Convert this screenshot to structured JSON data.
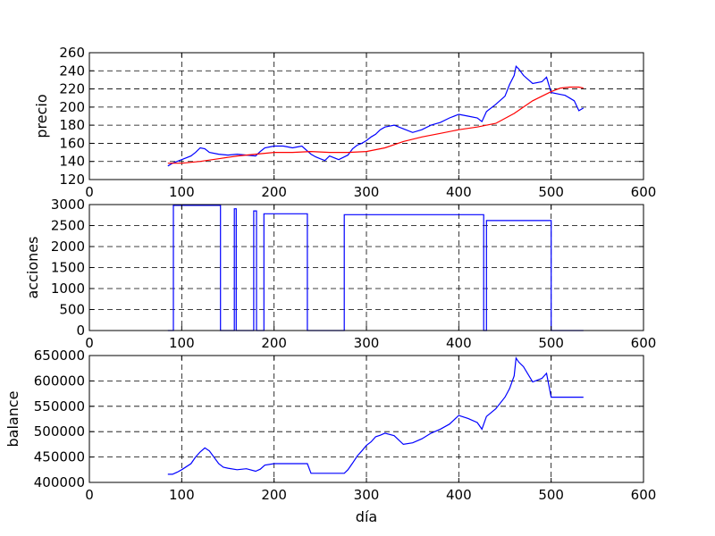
{
  "chart_data": [
    {
      "type": "line",
      "ylabel": "precio",
      "xlim": [
        0,
        600
      ],
      "ylim": [
        120,
        260
      ],
      "xticks": [
        "0",
        "100",
        "200",
        "300",
        "400",
        "500",
        "600"
      ],
      "yticks": [
        "120",
        "140",
        "160",
        "180",
        "200",
        "220",
        "240",
        "260"
      ],
      "grid": true,
      "series": [
        {
          "color": "#0000ff",
          "x": [
            85,
            90,
            100,
            110,
            115,
            120,
            125,
            130,
            140,
            150,
            160,
            170,
            180,
            185,
            190,
            200,
            210,
            220,
            230,
            240,
            245,
            250,
            255,
            260,
            270,
            280,
            285,
            290,
            295,
            300,
            305,
            310,
            315,
            320,
            330,
            340,
            350,
            360,
            370,
            380,
            390,
            400,
            410,
            420,
            425,
            430,
            440,
            450,
            455,
            460,
            462,
            465,
            470,
            480,
            490,
            495,
            500,
            510,
            515,
            520,
            525,
            530,
            535
          ],
          "y": [
            135,
            138,
            142,
            146,
            150,
            155,
            154,
            150,
            148,
            147,
            148,
            147,
            146,
            151,
            155,
            157,
            157,
            155,
            157,
            148,
            145,
            143,
            141,
            146,
            142,
            147,
            154,
            158,
            160,
            163,
            167,
            170,
            175,
            178,
            180,
            176,
            172,
            175,
            180,
            183,
            188,
            192,
            190,
            188,
            184,
            195,
            203,
            212,
            225,
            235,
            245,
            242,
            235,
            226,
            228,
            233,
            216,
            214,
            213,
            210,
            207,
            196,
            199
          ]
        },
        {
          "color": "#ff0000",
          "x": [
            85,
            100,
            120,
            140,
            160,
            180,
            200,
            220,
            240,
            260,
            280,
            300,
            320,
            340,
            360,
            380,
            400,
            420,
            440,
            460,
            480,
            500,
            510,
            520,
            530,
            535
          ],
          "y": [
            138,
            138,
            140,
            143,
            146,
            148,
            150,
            150,
            151,
            150,
            150,
            151,
            155,
            162,
            167,
            171,
            175,
            178,
            182,
            193,
            207,
            217,
            221,
            222,
            222,
            221
          ]
        }
      ]
    },
    {
      "type": "line",
      "ylabel": "acciones",
      "xlim": [
        0,
        600
      ],
      "ylim": [
        0,
        3000
      ],
      "xticks": [
        "0",
        "100",
        "200",
        "300",
        "400",
        "500",
        "600"
      ],
      "yticks": [
        "0",
        "500",
        "1000",
        "1500",
        "2000",
        "2500",
        "3000"
      ],
      "grid": true,
      "series": [
        {
          "color": "#0000ff",
          "x": [
            85,
            91,
            91,
            142,
            142,
            157,
            157,
            159,
            159,
            178,
            178,
            181,
            181,
            189,
            189,
            236,
            236,
            276,
            276,
            427,
            427,
            430,
            430,
            500,
            500,
            535
          ],
          "y": [
            0,
            0,
            2980,
            2980,
            0,
            0,
            2900,
            2900,
            0,
            0,
            2850,
            2850,
            0,
            0,
            2780,
            2780,
            0,
            0,
            2760,
            2760,
            0,
            0,
            2620,
            2620,
            0,
            0
          ]
        }
      ]
    },
    {
      "type": "line",
      "xlabel": "día",
      "ylabel": "balance",
      "xlim": [
        0,
        600
      ],
      "ylim": [
        400000,
        650000
      ],
      "xticks": [
        "0",
        "100",
        "200",
        "300",
        "400",
        "500",
        "600"
      ],
      "yticks": [
        "400000",
        "450000",
        "500000",
        "550000",
        "600000",
        "650000"
      ],
      "grid": true,
      "series": [
        {
          "color": "#0000ff",
          "x": [
            85,
            90,
            95,
            100,
            110,
            115,
            120,
            125,
            130,
            140,
            145,
            150,
            160,
            170,
            180,
            185,
            190,
            200,
            210,
            220,
            230,
            236,
            240,
            260,
            276,
            280,
            285,
            290,
            295,
            300,
            305,
            310,
            315,
            320,
            330,
            340,
            350,
            360,
            370,
            380,
            390,
            400,
            410,
            420,
            425,
            430,
            440,
            450,
            455,
            460,
            462,
            465,
            470,
            480,
            490,
            495,
            500,
            510,
            520,
            530,
            535
          ],
          "y": [
            416000,
            416000,
            420000,
            425000,
            437000,
            450000,
            460000,
            468000,
            462000,
            437000,
            430000,
            428000,
            425000,
            427000,
            422000,
            426000,
            434000,
            437000,
            437000,
            437000,
            437000,
            437000,
            418000,
            418000,
            418000,
            425000,
            438000,
            452000,
            462000,
            473000,
            480000,
            490000,
            493000,
            497000,
            492000,
            475000,
            478000,
            486000,
            497000,
            505000,
            515000,
            532000,
            526000,
            518000,
            505000,
            530000,
            545000,
            568000,
            585000,
            610000,
            645000,
            637000,
            628000,
            598000,
            605000,
            615000,
            568000,
            568000,
            568000,
            568000,
            568000
          ]
        }
      ]
    }
  ]
}
